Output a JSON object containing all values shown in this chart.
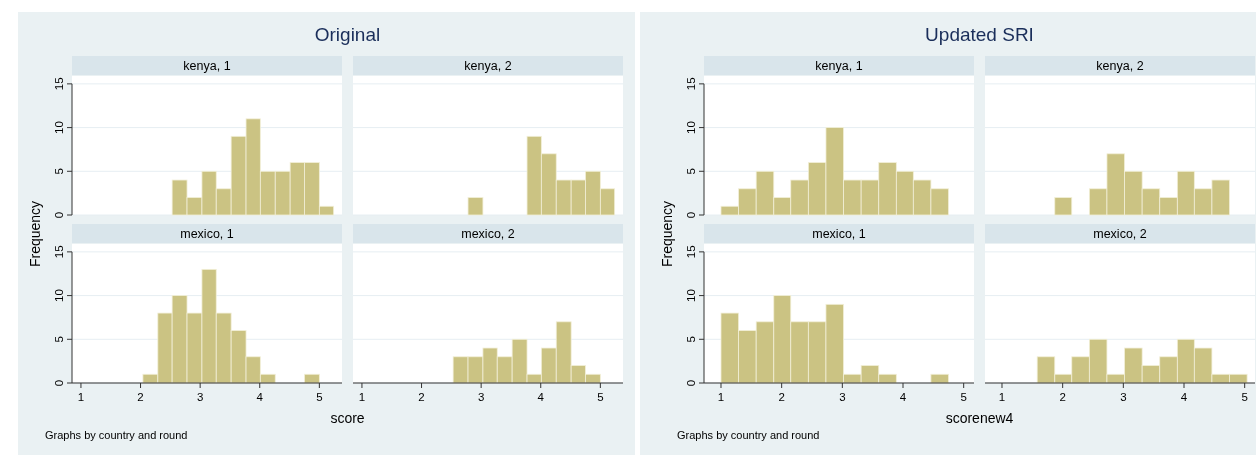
{
  "chart_data": [
    {
      "type": "histogram",
      "subtitle": "Original",
      "title": "kenya, 1",
      "bins": [
        2.53,
        2.78,
        3.03,
        3.27,
        3.52,
        3.77,
        4.01,
        4.26,
        4.51,
        4.75,
        5.0,
        5.24
      ],
      "values": [
        4,
        2,
        5,
        3,
        9,
        11,
        5,
        5,
        6,
        6,
        1
      ],
      "color": "#cbc383",
      "xlim": [
        0.85,
        5.38
      ],
      "ylim": [
        0,
        15.9
      ],
      "yticks": [
        0,
        5,
        10,
        15
      ],
      "grid": "y",
      "tick_labels": "y"
    },
    {
      "type": "histogram",
      "title": "kenya, 2",
      "bins": [
        2.78,
        3.03,
        3.77,
        4.01,
        4.26,
        4.51,
        4.75,
        5.0,
        5.24
      ],
      "values": [
        2,
        0,
        9,
        7,
        4,
        4,
        5,
        3
      ],
      "color": "#cbc383",
      "xlim": [
        0.85,
        5.38
      ],
      "ylim": [
        0,
        15.9
      ],
      "yticks": [
        0,
        5,
        10,
        15
      ],
      "grid": "y",
      "tick_labels": false
    },
    {
      "type": "histogram",
      "title": "mexico, 1",
      "xlabel": "score",
      "ylabel": "Frequency",
      "annotations": [
        "Graphs by country and round"
      ],
      "bins": [
        2.04,
        2.29,
        2.53,
        2.78,
        3.03,
        3.27,
        3.52,
        3.77,
        4.01,
        4.26,
        4.75,
        5.0
      ],
      "values": [
        1,
        8,
        10,
        8,
        13,
        8,
        6,
        3,
        1,
        0,
        1
      ],
      "color": "#cbc383",
      "xlim": [
        0.85,
        5.38
      ],
      "ylim": [
        0,
        15.9
      ],
      "xticks": [
        1,
        2,
        3,
        4,
        5
      ],
      "yticks": [
        0,
        5,
        10,
        15
      ],
      "grid": "y"
    },
    {
      "type": "histogram",
      "title": "mexico, 2",
      "bins": [
        2.53,
        2.78,
        3.03,
        3.27,
        3.52,
        3.77,
        4.01,
        4.26,
        4.51,
        4.75,
        5.0
      ],
      "values": [
        3,
        3,
        4,
        3,
        5,
        1,
        4,
        7,
        2,
        1
      ],
      "color": "#cbc383",
      "xlim": [
        0.85,
        5.38
      ],
      "ylim": [
        0,
        15.9
      ],
      "xticks": [
        1,
        2,
        3,
        4,
        5
      ],
      "yticks": [
        0,
        5,
        10,
        15
      ],
      "grid": "y",
      "tick_labels": "x"
    },
    {
      "type": "histogram",
      "subtitle": "Updated SRI",
      "title": "kenya, 1",
      "bins": [
        1.0,
        1.29,
        1.58,
        1.87,
        2.15,
        2.44,
        2.73,
        3.02,
        3.31,
        3.6,
        3.89,
        4.17,
        4.46,
        4.75
      ],
      "values": [
        1,
        3,
        5,
        2,
        4,
        6,
        10,
        4,
        4,
        6,
        5,
        4,
        3
      ],
      "color": "#cbc383",
      "xlim": [
        0.72,
        5.17
      ],
      "ylim": [
        0,
        15.9
      ],
      "yticks": [
        0,
        5,
        10,
        15
      ],
      "grid": "y",
      "tick_labels": "y"
    },
    {
      "type": "histogram",
      "title": "kenya, 2",
      "bins": [
        1.87,
        2.15,
        2.44,
        2.73,
        3.02,
        3.31,
        3.6,
        3.89,
        4.17,
        4.46,
        4.75
      ],
      "values": [
        2,
        0,
        3,
        7,
        5,
        3,
        2,
        5,
        3,
        4
      ],
      "color": "#cbc383",
      "xlim": [
        0.72,
        5.17
      ],
      "ylim": [
        0,
        15.9
      ],
      "yticks": [
        0,
        5,
        10,
        15
      ],
      "grid": "y",
      "tick_labels": false
    },
    {
      "type": "histogram",
      "title": "mexico, 1",
      "xlabel": "scorenew4",
      "ylabel": "Frequency",
      "annotations": [
        "Graphs by country and round"
      ],
      "bins": [
        1.0,
        1.29,
        1.58,
        1.87,
        2.15,
        2.44,
        2.73,
        3.02,
        3.31,
        3.6,
        3.89,
        4.46,
        4.75
      ],
      "values": [
        8,
        6,
        7,
        10,
        7,
        7,
        9,
        1,
        2,
        1,
        0,
        1
      ],
      "color": "#cbc383",
      "xlim": [
        0.72,
        5.17
      ],
      "ylim": [
        0,
        15.9
      ],
      "xticks": [
        1,
        2,
        3,
        4,
        5
      ],
      "yticks": [
        0,
        5,
        10,
        15
      ],
      "grid": "y"
    },
    {
      "type": "histogram",
      "title": "mexico, 2",
      "bins": [
        1.58,
        1.87,
        2.15,
        2.44,
        2.73,
        3.02,
        3.31,
        3.6,
        3.89,
        4.17,
        4.46,
        4.75,
        5.04
      ],
      "values": [
        3,
        1,
        3,
        5,
        1,
        4,
        2,
        3,
        5,
        4,
        1,
        1
      ],
      "color": "#cbc383",
      "xlim": [
        0.72,
        5.17
      ],
      "ylim": [
        0,
        15.9
      ],
      "xticks": [
        1,
        2,
        3,
        4,
        5
      ],
      "yticks": [
        0,
        5,
        10,
        15
      ],
      "grid": "y",
      "tick_labels": "x"
    }
  ]
}
